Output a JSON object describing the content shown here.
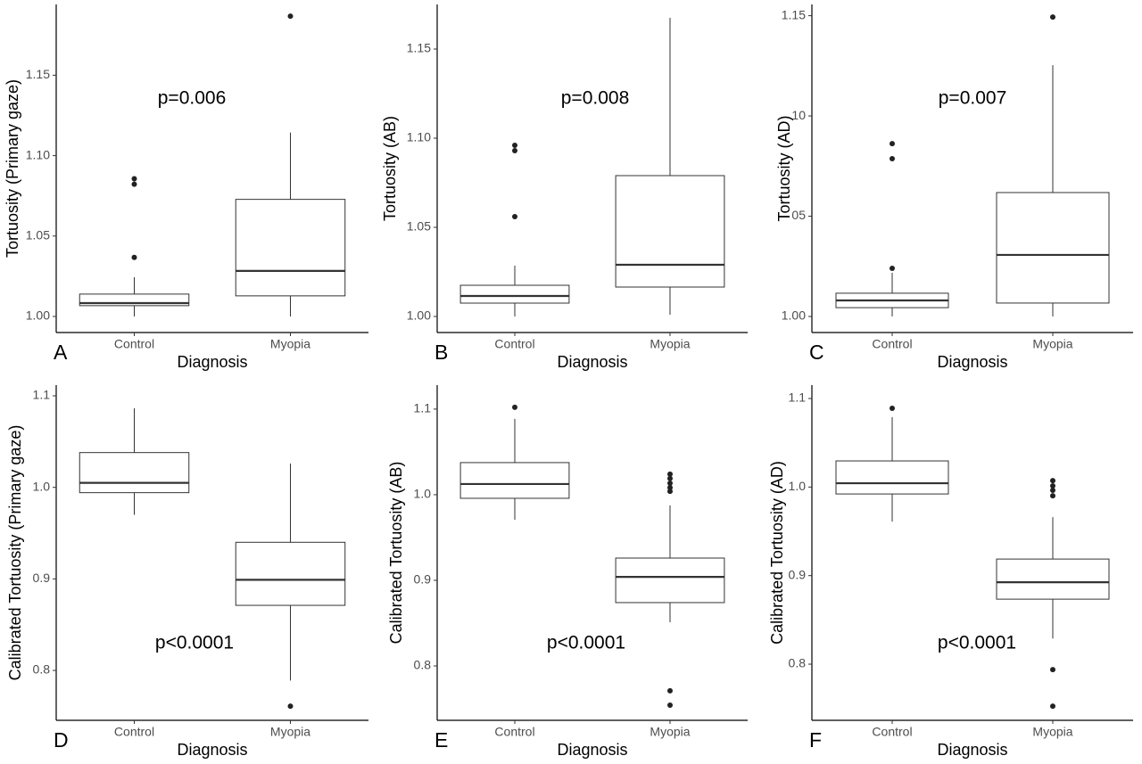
{
  "chart_data": [
    {
      "type": "box",
      "panel_label": "A",
      "annotation": "p=0.006",
      "x_label": "Diagnosis",
      "y_label": "Tortuosity (Primary gaze)",
      "categories": [
        "Control",
        "Myopia"
      ],
      "boxes": [
        {
          "min": 1.0,
          "q1": 1.0067,
          "median": 1.0083,
          "q3": 1.0139,
          "max": 1.0244,
          "outliers": [
            1.0856,
            1.0822,
            1.0367
          ]
        },
        {
          "min": 1.0,
          "q1": 1.0128,
          "median": 1.0283,
          "q3": 1.0728,
          "max": 1.1144,
          "outliers": [
            1.1867
          ]
        }
      ],
      "ylim": [
        0.99,
        1.194
      ],
      "yticks": [
        {
          "value": 1.0,
          "label": "1.00"
        },
        1.05,
        {
          "value": 1.1,
          "label": "1.10"
        },
        1.15
      ]
    },
    {
      "type": "box",
      "panel_label": "B",
      "annotation": "p=0.008",
      "x_label": "Diagnosis",
      "y_label": "Tortuosity (AB)",
      "categories": [
        "Control",
        "Myopia"
      ],
      "boxes": [
        {
          "min": 1.0,
          "q1": 1.0075,
          "median": 1.0115,
          "q3": 1.0175,
          "max": 1.0285,
          "outliers": [
            1.096,
            1.093,
            1.056
          ]
        },
        {
          "min": 1.001,
          "q1": 1.0165,
          "median": 1.029,
          "q3": 1.079,
          "max": 1.1675,
          "outliers": []
        }
      ],
      "ylim": [
        0.991,
        1.175
      ],
      "yticks": [
        {
          "value": 1.0,
          "label": "1.00"
        },
        1.05,
        {
          "value": 1.1,
          "label": "1.10"
        },
        1.15
      ]
    },
    {
      "type": "box",
      "panel_label": "C",
      "annotation": "p=0.007",
      "x_label": "Diagnosis",
      "y_label": "Tortuosity (AD)",
      "categories": [
        "Control",
        "Myopia"
      ],
      "boxes": [
        {
          "min": 1.0,
          "q1": 1.0044,
          "median": 1.008,
          "q3": 1.0116,
          "max": 1.0218,
          "outliers": [
            1.0862,
            1.0787,
            1.024
          ]
        },
        {
          "min": 1.0,
          "q1": 1.0067,
          "median": 1.0307,
          "q3": 1.0618,
          "max": 1.1253,
          "outliers": [
            1.1493
          ]
        }
      ],
      "ylim": [
        0.992,
        1.1556
      ],
      "yticks": [
        {
          "value": 1.0,
          "label": "1.00"
        },
        {
          "value": 1.05,
          "label": "05"
        },
        {
          "value": 1.1,
          "label": "10"
        },
        1.15
      ]
    },
    {
      "type": "box",
      "panel_label": "D",
      "annotation": "p<0.0001",
      "x_label": "Diagnosis",
      "y_label": "Calibrated Tortuosity (Primary gaze)",
      "categories": [
        "Control",
        "Myopia"
      ],
      "boxes": [
        {
          "min": 0.97,
          "q1": 0.9942,
          "median": 1.0049,
          "q3": 1.038,
          "max": 1.0864,
          "outliers": []
        },
        {
          "min": 0.789,
          "q1": 0.8711,
          "median": 0.899,
          "q3": 0.94,
          "max": 1.026,
          "outliers": [
            0.761
          ]
        }
      ],
      "ylim": [
        0.7455,
        1.1117
      ],
      "yticks": [
        0.8,
        0.9,
        {
          "value": 1.0,
          "label": "1.0"
        },
        1.1
      ]
    },
    {
      "type": "box",
      "panel_label": "E",
      "annotation": "p<0.0001",
      "x_label": "Diagnosis",
      "y_label": "Calibrated Tortuosity (AB)",
      "categories": [
        "Control",
        "Myopia"
      ],
      "boxes": [
        {
          "min": 0.9708,
          "q1": 0.9958,
          "median": 1.0125,
          "q3": 1.0375,
          "max": 1.0885,
          "outliers": [
            1.1021
          ]
        },
        {
          "min": 0.851,
          "q1": 0.874,
          "median": 0.904,
          "q3": 0.926,
          "max": 0.9875,
          "outliers": [
            1.024,
            1.019,
            1.0135,
            1.0083,
            1.004,
            0.771,
            0.7542
          ]
        }
      ],
      "ylim": [
        0.7365,
        1.128
      ],
      "yticks": [
        0.8,
        0.9,
        {
          "value": 1.0,
          "label": "1.0"
        },
        1.1
      ]
    },
    {
      "type": "box",
      "panel_label": "F",
      "annotation": "p<0.0001",
      "x_label": "Diagnosis",
      "y_label": "Calibrated Tortuosity (AD)",
      "categories": [
        "Control",
        "Myopia"
      ],
      "boxes": [
        {
          "min": 0.961,
          "q1": 0.9922,
          "median": 1.0043,
          "q3": 1.0295,
          "max": 1.0789,
          "outliers": [
            1.0889
          ]
        },
        {
          "min": 0.829,
          "q1": 0.8734,
          "median": 0.8925,
          "q3": 0.9187,
          "max": 0.966,
          "outliers": [
            1.0073,
            1.0013,
            0.9963,
            0.9902,
            0.7939,
            0.7526
          ]
        }
      ],
      "ylim": [
        0.7366,
        1.1151
      ],
      "yticks": [
        0.8,
        0.9,
        {
          "value": 1.0,
          "label": "1.0"
        },
        1.1
      ]
    }
  ]
}
